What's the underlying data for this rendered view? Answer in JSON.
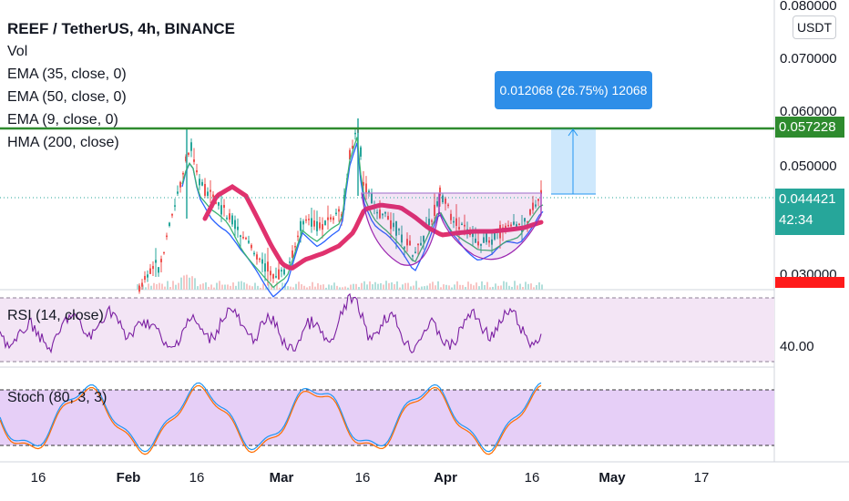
{
  "header": {
    "title": "REEF / TetherUS, 4h, BINANCE",
    "indicators": [
      "Vol",
      "EMA (35, close, 0)",
      "EMA (50, close, 0)",
      "EMA (9, close, 0)",
      "HMA (200, close)"
    ]
  },
  "panes": {
    "rsi_label": "RSI (14, close)",
    "stoch_label": "Stoch (80, 3, 3)"
  },
  "price_axis": {
    "currency": "USDT",
    "ticks": [
      "0.080000",
      "0.070000",
      "0.060000",
      "0.050000",
      "0.030000"
    ],
    "rsi_tick": "40.00"
  },
  "badges": {
    "target_price": "0.057228",
    "last_price": "0.044421",
    "countdown": "42:34",
    "red_price": "0.030000"
  },
  "measure_tooltip": "0.012068 (26.75%) 12068",
  "time_axis": {
    "labels": [
      {
        "text": "16",
        "bold": false
      },
      {
        "text": "Feb",
        "bold": true
      },
      {
        "text": "16",
        "bold": false
      },
      {
        "text": "Mar",
        "bold": true
      },
      {
        "text": "16",
        "bold": false
      },
      {
        "text": "Apr",
        "bold": true
      },
      {
        "text": "16",
        "bold": false
      },
      {
        "text": "May",
        "bold": true
      },
      {
        "text": "17",
        "bold": false
      }
    ]
  },
  "colors": {
    "candle_up": "#26a69a",
    "candle_down": "#ef5350",
    "hma": "#e0326e",
    "ema_blue": "#2962ff",
    "ema_green": "#3cb371",
    "rsi_line": "#7b1fa2",
    "rsi_fill": "#f3e5f5",
    "stoch_k": "#2196f3",
    "stoch_d": "#ff6d00",
    "stoch_fill": "#e6cff7",
    "target_line": "#2e8b2e",
    "badge_teal": "#26a69a",
    "badge_green": "#2e8b2e",
    "tooltip_blue": "#2e8ee8"
  }
}
